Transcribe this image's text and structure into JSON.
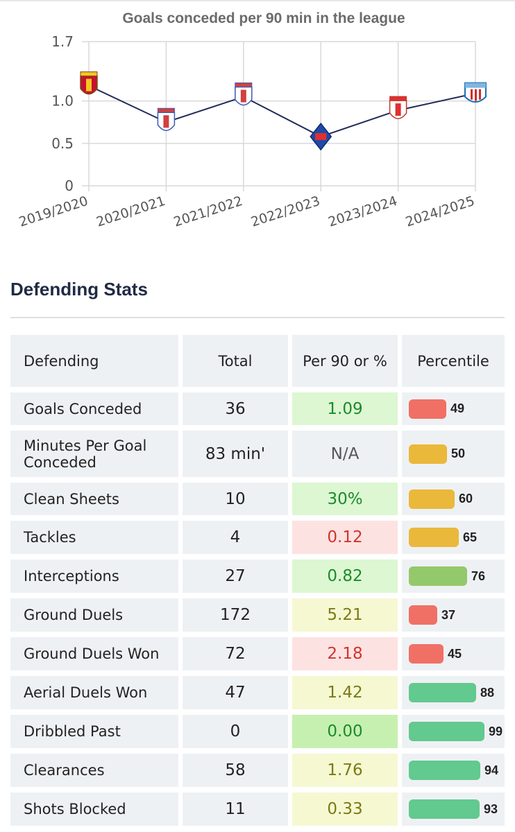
{
  "chart_data": {
    "type": "line",
    "title": "Goals conceded per 90 min in the league",
    "xlabel": "",
    "ylabel": "",
    "x": [
      "2019/2020",
      "2020/2021",
      "2021/2022",
      "2022/2023",
      "2023/2024",
      "2024/2025"
    ],
    "series": [
      {
        "values": [
          1.18,
          0.75,
          1.05,
          0.58,
          0.89,
          1.09
        ]
      }
    ],
    "yticks": [
      {
        "value": 0,
        "label": "0"
      },
      {
        "value": 0.5,
        "label": "0.5"
      },
      {
        "value": 1.0,
        "label": "1.0"
      },
      {
        "value": 1.7,
        "label": "1.7"
      }
    ],
    "ylim": [
      0,
      1.7
    ],
    "grid": true,
    "legend": "none",
    "line_color": "#1f2a5a",
    "markers": [
      "club-crest-icon",
      "club-crest-icon",
      "club-crest-icon",
      "club-crest-icon",
      "club-crest-icon",
      "lugo-crest-icon"
    ]
  },
  "section": {
    "title": "Defending Stats"
  },
  "table": {
    "headers": [
      "Defending",
      "Total",
      "Per 90 or %",
      "Percentile"
    ],
    "rows": [
      {
        "stat": "Goals Conceded",
        "total": "36",
        "per": "1.09",
        "per_tone": "green",
        "percentile": 49,
        "bar_color": "#f07066"
      },
      {
        "stat": "Minutes Per Goal Conceded",
        "total": "83 min'",
        "per": "N/A",
        "per_tone": "neutral",
        "percentile": 50,
        "bar_color": "#eab83a"
      },
      {
        "stat": "Clean Sheets",
        "total": "10",
        "per": "30%",
        "per_tone": "green",
        "percentile": 60,
        "bar_color": "#eab83a"
      },
      {
        "stat": "Tackles",
        "total": "4",
        "per": "0.12",
        "per_tone": "red",
        "percentile": 65,
        "bar_color": "#eab83a"
      },
      {
        "stat": "Interceptions",
        "total": "27",
        "per": "0.82",
        "per_tone": "green",
        "percentile": 76,
        "bar_color": "#93c96a"
      },
      {
        "stat": "Ground Duels",
        "total": "172",
        "per": "5.21",
        "per_tone": "yellow",
        "percentile": 37,
        "bar_color": "#f07066"
      },
      {
        "stat": "Ground Duels Won",
        "total": "72",
        "per": "2.18",
        "per_tone": "red",
        "percentile": 45,
        "bar_color": "#f07066"
      },
      {
        "stat": "Aerial Duels Won",
        "total": "47",
        "per": "1.42",
        "per_tone": "yellow",
        "percentile": 88,
        "bar_color": "#62c98f"
      },
      {
        "stat": "Dribbled Past",
        "total": "0",
        "per": "0.00",
        "per_tone": "green2",
        "percentile": 99,
        "bar_color": "#62c98f"
      },
      {
        "stat": "Clearances",
        "total": "58",
        "per": "1.76",
        "per_tone": "yellow",
        "percentile": 94,
        "bar_color": "#62c98f"
      },
      {
        "stat": "Shots Blocked",
        "total": "11",
        "per": "0.33",
        "per_tone": "yellow",
        "percentile": 93,
        "bar_color": "#62c98f"
      }
    ]
  }
}
